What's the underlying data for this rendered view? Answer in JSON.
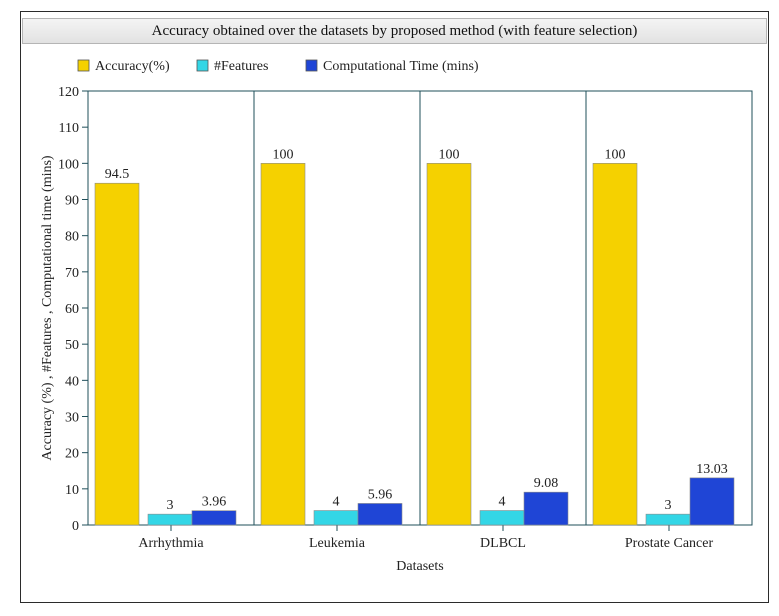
{
  "chart_data": {
    "type": "bar",
    "title": "Accuracy obtained over the datasets by proposed method (with feature selection)",
    "xlabel": "Datasets",
    "ylabel": "Accuracy (%) , #Features , Computational time (mins)",
    "categories": [
      "Arrhythmia",
      "Leukemia",
      "DLBCL",
      "Prostate Cancer"
    ],
    "ylim": [
      0,
      120
    ],
    "yticks": [
      0,
      10,
      20,
      30,
      40,
      50,
      60,
      70,
      80,
      90,
      100,
      110,
      120
    ],
    "legend_position": "top-left",
    "grid": false,
    "series": [
      {
        "name": "Accuracy(%)",
        "color": "#f5d100",
        "values": [
          94.5,
          100,
          100,
          100
        ],
        "labels": [
          "94.5",
          "100",
          "100",
          "100"
        ]
      },
      {
        "name": "#Features",
        "color": "#33d6e6",
        "values": [
          3,
          4,
          4,
          3
        ],
        "labels": [
          "3",
          "4",
          "4",
          "3"
        ]
      },
      {
        "name": "Computational Time (mins)",
        "color": "#1f45d6",
        "values": [
          3.96,
          5.96,
          9.08,
          13.03
        ],
        "labels": [
          "3.96",
          "5.96",
          "9.08",
          "13.03"
        ]
      }
    ]
  }
}
